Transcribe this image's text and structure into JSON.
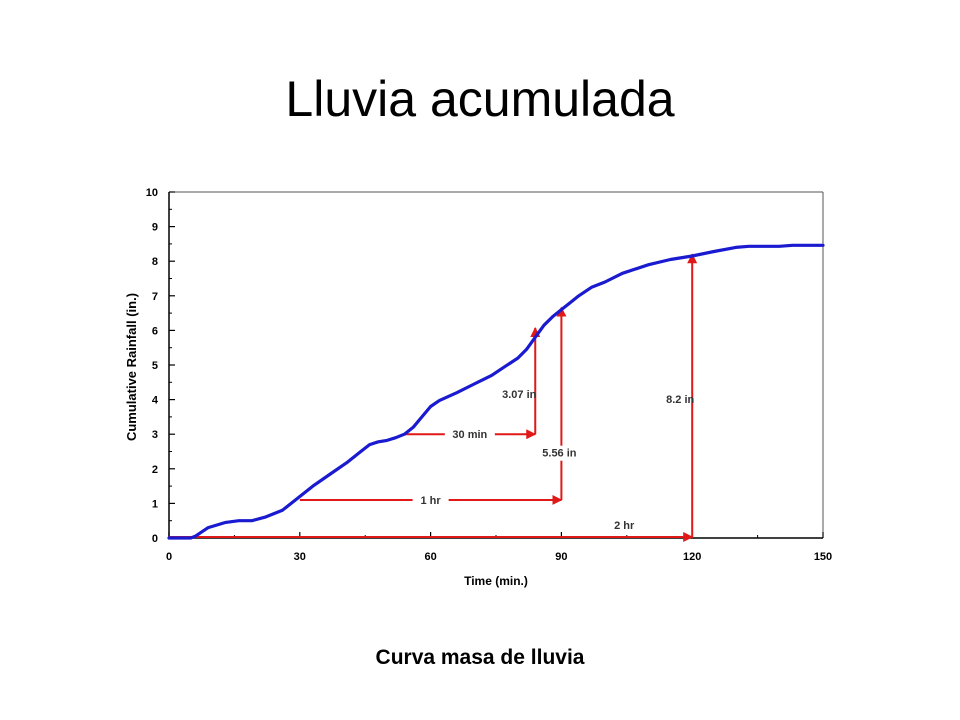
{
  "slide": {
    "title": "Lluvia acumulada",
    "caption": "Curva masa de lluvia"
  },
  "colors": {
    "curve": "#1a1ad0",
    "annotation": "#e01818",
    "axis": "#000000"
  },
  "chart_data": {
    "type": "line",
    "title": "",
    "xlabel": "Time (min.)",
    "ylabel": "Cumulative Rainfall (in.)",
    "xlim": [
      0,
      150
    ],
    "ylim": [
      0,
      10
    ],
    "xticks": [
      0,
      30,
      60,
      90,
      120,
      150
    ],
    "yticks": [
      0,
      1,
      2,
      3,
      4,
      5,
      6,
      7,
      8,
      9,
      10
    ],
    "grid": false,
    "series": [
      {
        "points": [
          [
            0,
            0
          ],
          [
            5,
            0
          ],
          [
            6,
            0.05
          ],
          [
            9,
            0.3
          ],
          [
            13,
            0.45
          ],
          [
            16,
            0.5
          ],
          [
            19,
            0.5
          ],
          [
            22,
            0.6
          ],
          [
            26,
            0.8
          ],
          [
            30,
            1.2
          ],
          [
            33,
            1.5
          ],
          [
            37,
            1.85
          ],
          [
            41,
            2.2
          ],
          [
            44,
            2.5
          ],
          [
            46,
            2.7
          ],
          [
            48,
            2.78
          ],
          [
            50,
            2.82
          ],
          [
            52,
            2.9
          ],
          [
            54,
            3.0
          ],
          [
            56,
            3.2
          ],
          [
            58,
            3.5
          ],
          [
            60,
            3.8
          ],
          [
            62,
            3.97
          ],
          [
            66,
            4.2
          ],
          [
            70,
            4.45
          ],
          [
            74,
            4.7
          ],
          [
            77,
            4.95
          ],
          [
            80,
            5.2
          ],
          [
            82,
            5.45
          ],
          [
            84,
            5.8
          ],
          [
            86,
            6.15
          ],
          [
            88,
            6.4
          ],
          [
            90,
            6.6
          ],
          [
            92,
            6.8
          ],
          [
            94,
            7.0
          ],
          [
            97,
            7.25
          ],
          [
            100,
            7.4
          ],
          [
            104,
            7.65
          ],
          [
            110,
            7.9
          ],
          [
            115,
            8.05
          ],
          [
            120,
            8.15
          ],
          [
            125,
            8.28
          ],
          [
            130,
            8.4
          ],
          [
            133,
            8.43
          ],
          [
            140,
            8.43
          ],
          [
            143,
            8.46
          ],
          [
            150,
            8.46
          ]
        ]
      }
    ],
    "annotations": [
      {
        "label": "30 min",
        "kind": "horizontal",
        "x0": 54,
        "x1": 84,
        "y": 3.0
      },
      {
        "label": "3.07 in",
        "kind": "vertical",
        "x": 84,
        "y0": 3.0,
        "y1": 6.07
      },
      {
        "label": "1 hr",
        "kind": "horizontal",
        "x0": 30,
        "x1": 90,
        "y": 1.1
      },
      {
        "label": "5.56 in",
        "kind": "vertical",
        "x": 90,
        "y0": 1.1,
        "y1": 6.66
      },
      {
        "label": "2 hr",
        "kind": "horizontal",
        "x0": 0,
        "x1": 120,
        "y": 0
      },
      {
        "label": "8.2 in",
        "kind": "vertical",
        "x": 120,
        "y0": 0,
        "y1": 8.2
      }
    ]
  }
}
